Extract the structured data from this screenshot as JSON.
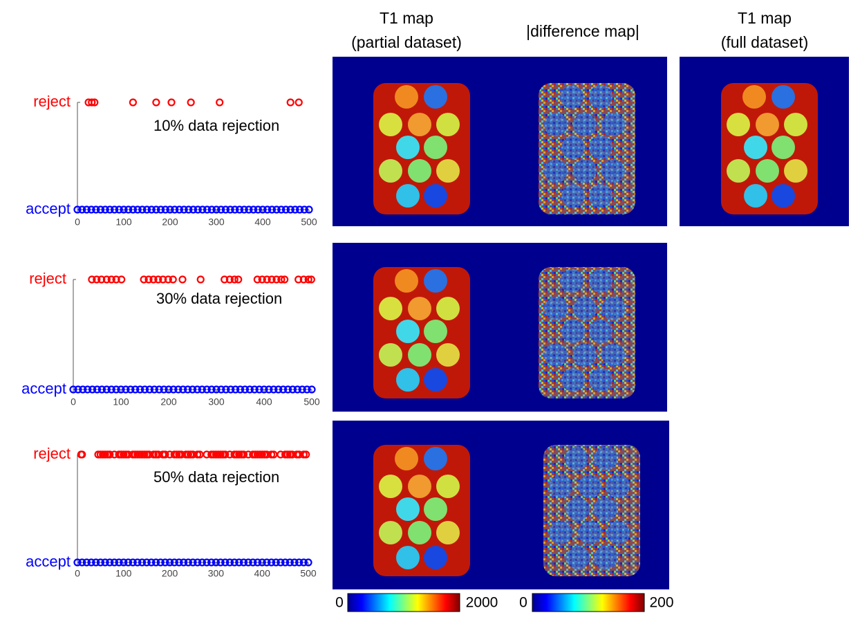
{
  "headers": {
    "partial": [
      "T1 map",
      "(partial dataset)"
    ],
    "difference": "|difference map|",
    "full": [
      "T1 map",
      "(full dataset)"
    ]
  },
  "chart_data": [
    {
      "type": "scatter",
      "annotation": "10% data rejection",
      "xlim": [
        0,
        500
      ],
      "xticks": [
        0,
        100,
        200,
        300,
        400,
        500
      ],
      "ylim": [
        0,
        1
      ],
      "yticks": [
        {
          "value": 0,
          "label": "accept"
        },
        {
          "value": 1,
          "label": "reject"
        }
      ],
      "series": [
        {
          "color": "#ff0000",
          "x": [
            24,
            31,
            37,
            120,
            170,
            203,
            245,
            307,
            460,
            478
          ],
          "values": [
            1,
            1,
            1,
            1,
            1,
            1,
            1,
            1,
            1,
            1
          ]
        },
        {
          "color": "#0000ff",
          "x": [
            0,
            10,
            20,
            30,
            40,
            50,
            60,
            70,
            80,
            90,
            100,
            110,
            120,
            130,
            140,
            150,
            160,
            170,
            180,
            190,
            200,
            210,
            220,
            230,
            240,
            250,
            260,
            270,
            280,
            290,
            300,
            310,
            320,
            330,
            340,
            350,
            360,
            370,
            380,
            390,
            400,
            410,
            420,
            430,
            440,
            450,
            460,
            470,
            480,
            490,
            500
          ],
          "values": [
            0,
            0,
            0,
            0,
            0,
            0,
            0,
            0,
            0,
            0,
            0,
            0,
            0,
            0,
            0,
            0,
            0,
            0,
            0,
            0,
            0,
            0,
            0,
            0,
            0,
            0,
            0,
            0,
            0,
            0,
            0,
            0,
            0,
            0,
            0,
            0,
            0,
            0,
            0,
            0,
            0,
            0,
            0,
            0,
            0,
            0,
            0,
            0,
            0,
            0,
            0
          ]
        }
      ]
    },
    {
      "type": "scatter",
      "annotation": "30% data rejection",
      "xlim": [
        0,
        500
      ],
      "xticks": [
        0,
        100,
        200,
        300,
        400,
        500
      ],
      "ylim": [
        0,
        1
      ],
      "yticks": [
        {
          "value": 0,
          "label": "accept"
        },
        {
          "value": 1,
          "label": "reject"
        }
      ],
      "series": [
        {
          "color": "#ff0000",
          "x": [
            39,
            49,
            59,
            70,
            80,
            90,
            101,
            148,
            158,
            168,
            178,
            188,
            199,
            209,
            229,
            267,
            317,
            328,
            338,
            346,
            386,
            396,
            406,
            416,
            426,
            436,
            443,
            472,
            483,
            493,
            499
          ],
          "values": [
            1,
            1,
            1,
            1,
            1,
            1,
            1,
            1,
            1,
            1,
            1,
            1,
            1,
            1,
            1,
            1,
            1,
            1,
            1,
            1,
            1,
            1,
            1,
            1,
            1,
            1,
            1,
            1,
            1,
            1,
            1
          ]
        },
        {
          "color": "#0000ff",
          "x": [
            0,
            10,
            20,
            30,
            40,
            50,
            60,
            70,
            80,
            90,
            100,
            110,
            120,
            130,
            140,
            150,
            160,
            170,
            180,
            190,
            200,
            210,
            220,
            230,
            240,
            250,
            260,
            270,
            280,
            290,
            300,
            310,
            320,
            330,
            340,
            350,
            360,
            370,
            380,
            390,
            400,
            410,
            420,
            430,
            440,
            450,
            460,
            470,
            480,
            490,
            500
          ],
          "values": [
            0,
            0,
            0,
            0,
            0,
            0,
            0,
            0,
            0,
            0,
            0,
            0,
            0,
            0,
            0,
            0,
            0,
            0,
            0,
            0,
            0,
            0,
            0,
            0,
            0,
            0,
            0,
            0,
            0,
            0,
            0,
            0,
            0,
            0,
            0,
            0,
            0,
            0,
            0,
            0,
            0,
            0,
            0,
            0,
            0,
            0,
            0,
            0,
            0,
            0,
            0
          ]
        }
      ]
    },
    {
      "type": "scatter",
      "annotation": "50% data rejection",
      "xlim": [
        0,
        500
      ],
      "xticks": [
        0,
        100,
        200,
        300,
        400,
        500
      ],
      "ylim": [
        0,
        1
      ],
      "yticks": [
        {
          "value": 0,
          "label": "accept"
        },
        {
          "value": 1,
          "label": "reject"
        }
      ],
      "series": [
        {
          "color": "#ff0000",
          "x": [
            8,
            10,
            45,
            50,
            55,
            60,
            65,
            70,
            80,
            90,
            95,
            100,
            105,
            110,
            120,
            125,
            130,
            135,
            140,
            145,
            150,
            155,
            165,
            170,
            175,
            185,
            190,
            200,
            210,
            215,
            220,
            225,
            235,
            240,
            245,
            250,
            260,
            265,
            280,
            290,
            295,
            300,
            305,
            310,
            315,
            320,
            330,
            340,
            345,
            350,
            355,
            360,
            370,
            380,
            385,
            390,
            395,
            400,
            405,
            410,
            420,
            425,
            440,
            450,
            455,
            460,
            465,
            475,
            480,
            490,
            495
          ],
          "values": [
            1,
            1,
            1,
            1,
            1,
            1,
            1,
            1,
            1,
            1,
            1,
            1,
            1,
            1,
            1,
            1,
            1,
            1,
            1,
            1,
            1,
            1,
            1,
            1,
            1,
            1,
            1,
            1,
            1,
            1,
            1,
            1,
            1,
            1,
            1,
            1,
            1,
            1,
            1,
            1,
            1,
            1,
            1,
            1,
            1,
            1,
            1,
            1,
            1,
            1,
            1,
            1,
            1,
            1,
            1,
            1,
            1,
            1,
            1,
            1,
            1,
            1,
            1,
            1,
            1,
            1,
            1,
            1,
            1,
            1,
            1
          ]
        },
        {
          "color": "#0000ff",
          "x": [
            0,
            10,
            20,
            30,
            40,
            50,
            60,
            70,
            80,
            90,
            100,
            110,
            120,
            130,
            140,
            150,
            160,
            170,
            180,
            190,
            200,
            210,
            220,
            230,
            240,
            250,
            260,
            270,
            280,
            290,
            300,
            310,
            320,
            330,
            340,
            350,
            360,
            370,
            380,
            390,
            400,
            410,
            420,
            430,
            440,
            450,
            460,
            470,
            480,
            490,
            500
          ],
          "values": [
            0,
            0,
            0,
            0,
            0,
            0,
            0,
            0,
            0,
            0,
            0,
            0,
            0,
            0,
            0,
            0,
            0,
            0,
            0,
            0,
            0,
            0,
            0,
            0,
            0,
            0,
            0,
            0,
            0,
            0,
            0,
            0,
            0,
            0,
            0,
            0,
            0,
            0,
            0,
            0,
            0,
            0,
            0,
            0,
            0,
            0,
            0,
            0,
            0,
            0,
            0
          ]
        }
      ]
    }
  ],
  "colorbars": [
    {
      "min": 0,
      "max": 2000
    },
    {
      "min": 0,
      "max": 200
    }
  ]
}
